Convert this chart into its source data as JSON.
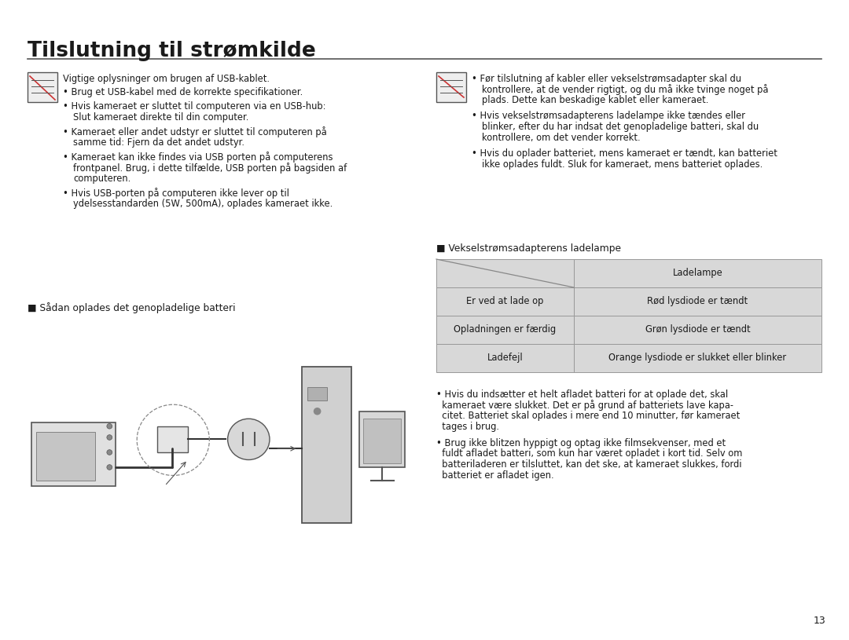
{
  "title": "Tilslutning til strømkilde",
  "page_number": "13",
  "bg_color": "#ffffff",
  "title_color": "#1a1a1a",
  "title_fontsize": 19,
  "body_fontsize": 8.3,
  "left_note_header": "Vigtige oplysninger om brugen af USB-kablet.",
  "left_bullets": [
    "Brug et USB-kabel med de korrekte specifikationer.",
    "Hvis kameraet er sluttet til computeren via en USB-hub:\n  Slut kameraet direkte til din computer.",
    "Kameraet eller andet udstyr er sluttet til computeren på\n  samme tid: Fjern da det andet udstyr.",
    "Kameraet kan ikke findes via USB porten på computerens\n  frontpanel. Brug, i dette tilfælde, USB porten på bagsiden af\n  computeren.",
    "Hvis USB-porten på computeren ikke lever op til\n  ydelsesstandarden (5W, 500mA), oplades kameraet ikke."
  ],
  "right_bullets": [
    "Før tilslutning af kabler eller vekselstrømsadapter skal du\n  kontrollere, at de vender rigtigt, og du må ikke tvinge noget på\n  plads. Dette kan beskadige kablet eller kameraet.",
    "Hvis vekselstrømsadapterens ladelampe ikke tændes eller\n  blinker, efter du har indsat det genopladelige batteri, skal du\n  kontrollere, om det vender korrekt.",
    "Hvis du oplader batteriet, mens kameraet er tændt, kan batteriet\n  ikke oplades fuldt. Sluk for kameraet, mens batteriet oplades."
  ],
  "section1_label": "■ Sådan oplades det genopladelige batteri",
  "section2_label": "■ Vekselstrømsadapterens ladelampe",
  "table_header_col2": "Ladelampe",
  "table_rows": [
    [
      "Er ved at lade op",
      "Rød lysdiode er tændt"
    ],
    [
      "Opladningen er færdig",
      "Grøn lysdiode er tændt"
    ],
    [
      "Ladefejl",
      "Orange lysdiode er slukket eller blinker"
    ]
  ],
  "table_bg": "#d8d8d8",
  "table_border": "#999999",
  "bottom_bullet1_lines": [
    "• Hvis du indsætter et helt afladet batteri for at oplade det, skal",
    "  kameraet være slukket. Det er på grund af batteriets lave kapa-",
    "  citet. Batteriet skal oplades i mere end 10 minutter, før kameraet",
    "  tages i brug."
  ],
  "bottom_bullet2_lines": [
    "• Brug ikke blitzen hyppigt og optag ikke filmsekvenser, med et",
    "  fuldt afladet batteri, som kun har været opladet i kort tid. Selv om",
    "  batteriladeren er tilsluttet, kan det ske, at kameraet slukkes, fordi",
    "  batteriet er afladet igen."
  ]
}
